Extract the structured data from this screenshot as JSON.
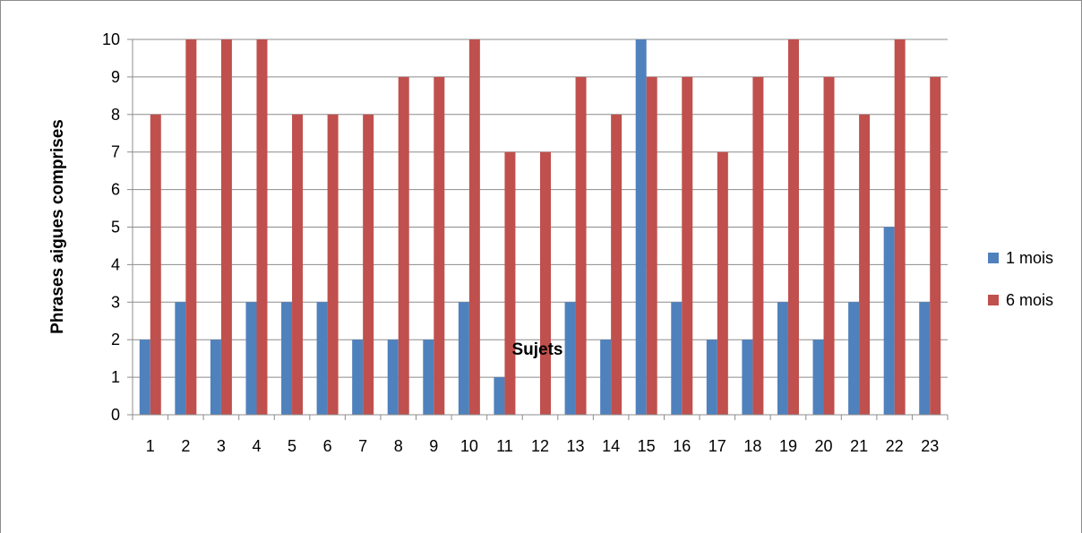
{
  "chart_data": {
    "type": "bar",
    "categories": [
      "1",
      "2",
      "3",
      "4",
      "5",
      "6",
      "7",
      "8",
      "9",
      "10",
      "11",
      "12",
      "13",
      "14",
      "15",
      "16",
      "17",
      "18",
      "19",
      "20",
      "21",
      "22",
      "23"
    ],
    "series": [
      {
        "name": "1 mois",
        "color": "#4f81bd",
        "values": [
          2,
          3,
          2,
          3,
          3,
          3,
          2,
          2,
          2,
          3,
          1,
          0,
          3,
          2,
          10,
          3,
          2,
          2,
          3,
          2,
          3,
          5,
          3
        ]
      },
      {
        "name": "6 mois",
        "color": "#c0504d",
        "values": [
          8,
          10,
          10,
          10,
          8,
          8,
          8,
          9,
          9,
          10,
          7,
          7,
          9,
          8,
          9,
          9,
          7,
          9,
          10,
          9,
          8,
          10,
          9
        ]
      }
    ],
    "yticks": [
      "0",
      "1",
      "2",
      "3",
      "4",
      "5",
      "6",
      "7",
      "8",
      "9",
      "10"
    ],
    "ylim": [
      0,
      10
    ],
    "xlabel": "Sujets",
    "ylabel": "Phrases aigues comprises",
    "grid": true,
    "legend_position": "right"
  }
}
